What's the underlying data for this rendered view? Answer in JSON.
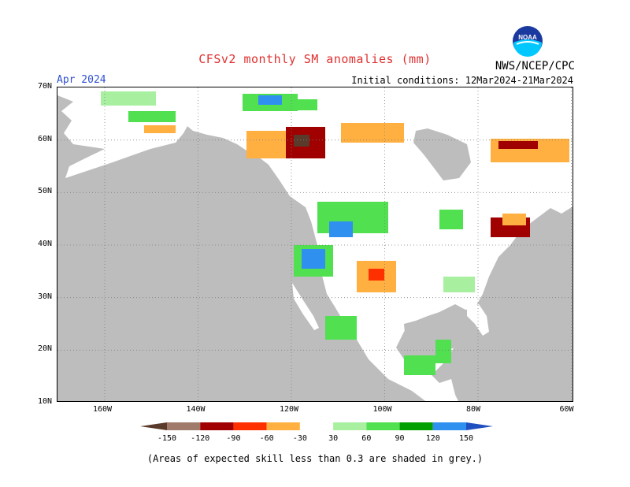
{
  "header": {
    "title": "CFSv2 monthly SM anomalies (mm)",
    "agency": "NWS/NCEP/CPC",
    "logo_text": "NOAA",
    "lead_month": "Apr 2024",
    "initial_conditions": "Initial conditions: 12Mar2024-21Mar2024"
  },
  "map": {
    "lat_labels": [
      "70N",
      "60N",
      "50N",
      "40N",
      "30N",
      "20N",
      "10N"
    ],
    "lon_labels": [
      "160W",
      "140W",
      "120W",
      "100W",
      "80W",
      "60W"
    ],
    "colors": {
      "background_grey": "#bdbdbd",
      "land_white": "#ffffff",
      "gridline": "#808080"
    }
  },
  "colorbar": {
    "tick_labels": [
      "-150",
      "-120",
      "-90",
      "-60",
      "-30",
      "30",
      "60",
      "90",
      "120",
      "150"
    ],
    "colors": [
      "#5a3a2a",
      "#a07a6a",
      "#a00000",
      "#ff3000",
      "#ffb040",
      "#ffffff",
      "#a8f0a0",
      "#50e050",
      "#00a000",
      "#3090f0",
      "#2050c0"
    ]
  },
  "footer": {
    "note": "(Areas of expected skill less than 0.3 are shaded in grey.)"
  }
}
